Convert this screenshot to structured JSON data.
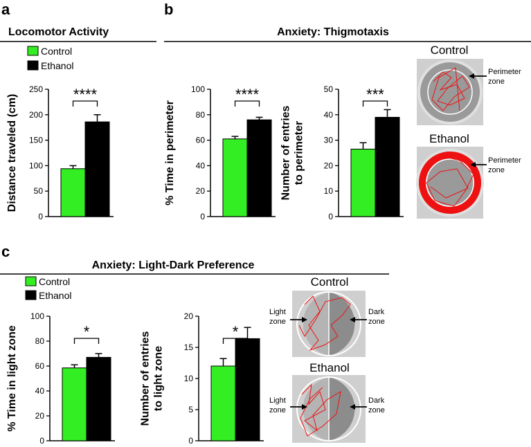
{
  "panels": {
    "a": {
      "letter": "a",
      "title": "Locomotor Activity"
    },
    "b": {
      "letter": "b",
      "title": "Anxiety: Thigmotaxis"
    },
    "c": {
      "letter": "c",
      "title": "Anxiety: Light-Dark Preference"
    }
  },
  "legend": {
    "control": "Control",
    "ethanol": "Ethanol"
  },
  "colors": {
    "control": "#33ee22",
    "ethanol": "#000000",
    "track": "#ee1111",
    "arena_bg": "#a8a8a8",
    "zone_line": "#ffffff"
  },
  "photos": {
    "thigmotaxis": {
      "control_label": "Control",
      "ethanol_label": "Ethanol",
      "zone_label": [
        "Perimeter",
        "zone"
      ]
    },
    "lightdark": {
      "control_label": "Control",
      "ethanol_label": "Ethanol",
      "light_label": [
        "Light",
        "zone"
      ],
      "dark_label": [
        "Dark",
        "zone"
      ]
    }
  },
  "chart_data": [
    {
      "id": "locomotor",
      "type": "bar",
      "categories": [
        "Control",
        "Ethanol"
      ],
      "values": [
        94,
        186
      ],
      "errors": [
        6,
        14
      ],
      "ylabel": [
        "Distance traveled (cm)"
      ],
      "ylim": [
        0,
        250
      ],
      "yticks": [
        0,
        50,
        100,
        150,
        200,
        250
      ],
      "significance": "****"
    },
    {
      "id": "perimeter_time",
      "type": "bar",
      "categories": [
        "Control",
        "Ethanol"
      ],
      "values": [
        61,
        76
      ],
      "errors": [
        2,
        2
      ],
      "ylabel": [
        "% Time in perimeter"
      ],
      "ylim": [
        0,
        100
      ],
      "yticks": [
        0,
        20,
        40,
        60,
        80,
        100
      ],
      "significance": "****"
    },
    {
      "id": "perimeter_entries",
      "type": "bar",
      "categories": [
        "Control",
        "Ethanol"
      ],
      "values": [
        26.5,
        39
      ],
      "errors": [
        2.5,
        3
      ],
      "ylabel": [
        "Number of entries",
        "to perimeter"
      ],
      "ylim": [
        0,
        50
      ],
      "yticks": [
        0,
        10,
        20,
        30,
        40,
        50
      ],
      "significance": "***"
    },
    {
      "id": "light_time",
      "type": "bar",
      "categories": [
        "Control",
        "Ethanol"
      ],
      "values": [
        58.5,
        67
      ],
      "errors": [
        2.5,
        3
      ],
      "ylabel": [
        "% Time in light zone"
      ],
      "ylim": [
        0,
        100
      ],
      "yticks": [
        0,
        20,
        40,
        60,
        80,
        100
      ],
      "significance": "*"
    },
    {
      "id": "light_entries",
      "type": "bar",
      "categories": [
        "Control",
        "Ethanol"
      ],
      "values": [
        12,
        16.4
      ],
      "errors": [
        1.2,
        1.8
      ],
      "ylabel": [
        "Number of entries",
        "to light zone"
      ],
      "ylim": [
        0,
        20
      ],
      "yticks": [
        0,
        5,
        10,
        15,
        20
      ],
      "significance": "*"
    }
  ]
}
